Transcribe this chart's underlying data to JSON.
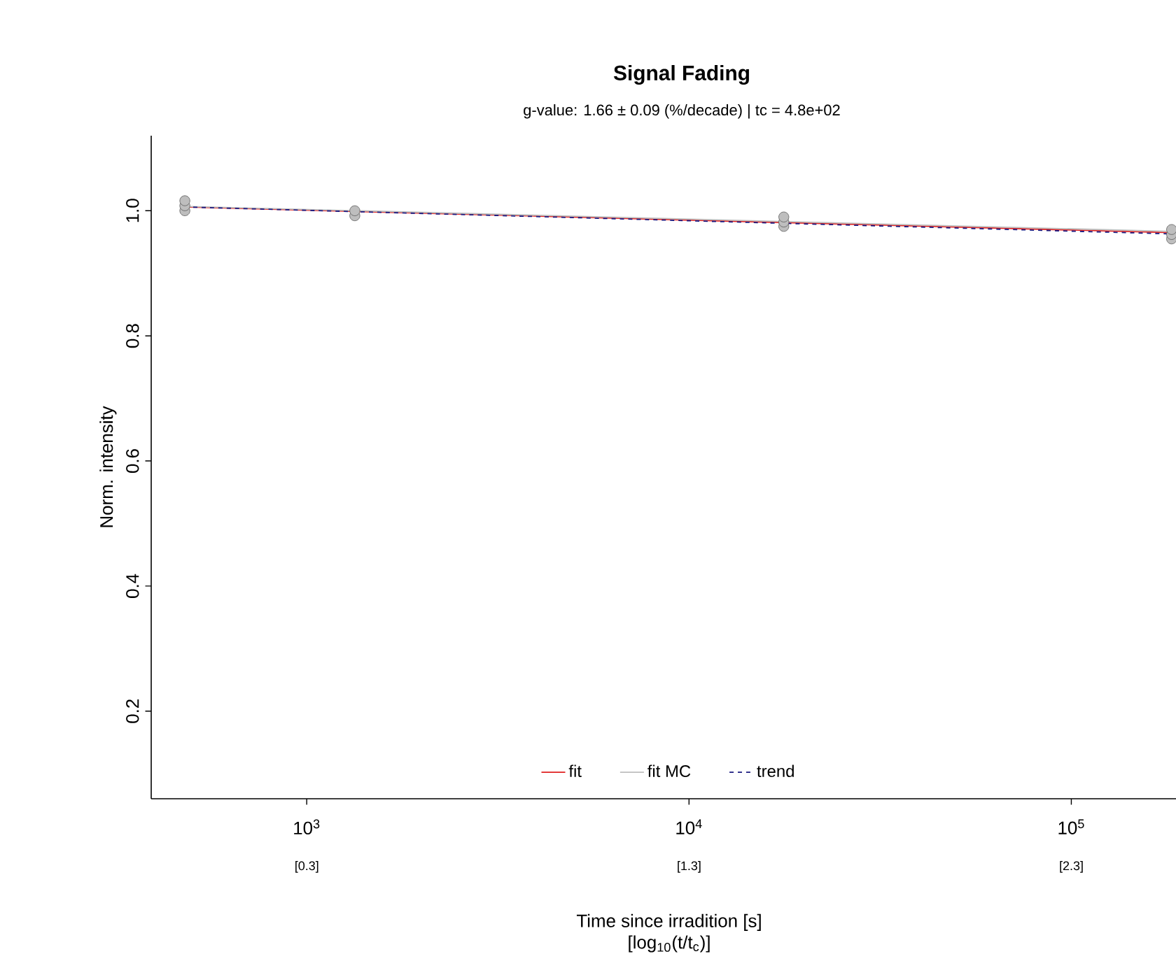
{
  "chart_data": {
    "type": "scatter",
    "title": "Signal Fading",
    "subtitle": "g-value: 1.66 ± 0.09 (%/decade) | tc = 4.8e+02",
    "xlabel": "Time since irradition [s]",
    "x2label": "[log$_{10}$(t/t$_{c}$)]",
    "ylabel": "Norm. intensity",
    "log": "x",
    "xlim": [
      392,
      201000
    ],
    "ylim": [
      0.06,
      1.12
    ],
    "xticks": [
      {
        "value": 1000,
        "label": "10$^{3}$"
      },
      {
        "value": 10000,
        "label": "10$^{4}$"
      },
      {
        "value": 100000,
        "label": "10$^{5}$"
      }
    ],
    "x2lim": [
      -0.088,
      2.622
    ],
    "x2ticks": [
      {
        "value": 0.319,
        "label": "[0.3]"
      },
      {
        "value": 1.319,
        "label": "[1.3]"
      },
      {
        "value": 2.319,
        "label": "[2.3]"
      }
    ],
    "yticks": [
      0.2,
      0.4,
      0.6,
      0.8,
      {
        "value": 1,
        "label": "1.0"
      }
    ],
    "legend": "bottom",
    "grid": false,
    "series": [
      {
        "color": "#bebebe",
        "marker": "circle",
        "x": [
          480,
          480,
          480,
          1336,
          1336,
          17700,
          17700,
          17700,
          183000,
          183000,
          183000
        ],
        "values": [
          1.0,
          1.008,
          1.016,
          0.992,
          1.0,
          0.975,
          0.982,
          0.99,
          0.955,
          0.962,
          0.97
        ]
      },
      {
        "type": "line",
        "name": "fit",
        "color": "#df2020",
        "line_style": "solid",
        "marker": "none",
        "x": [
          480,
          183000
        ],
        "values": [
          1.006,
          0.965
        ]
      },
      {
        "type": "line",
        "name": "fit MC",
        "color": "#bebebe",
        "line_style": "solid",
        "marker": "none",
        "x": [
          480,
          183000
        ],
        "values": [
          1.007,
          0.967
        ]
      },
      {
        "type": "line",
        "name": "trend",
        "color": "#1a1a80",
        "line_style": "dashed",
        "marker": "none",
        "x": [
          480,
          183000
        ],
        "values": [
          1.006,
          0.963
        ]
      }
    ]
  }
}
